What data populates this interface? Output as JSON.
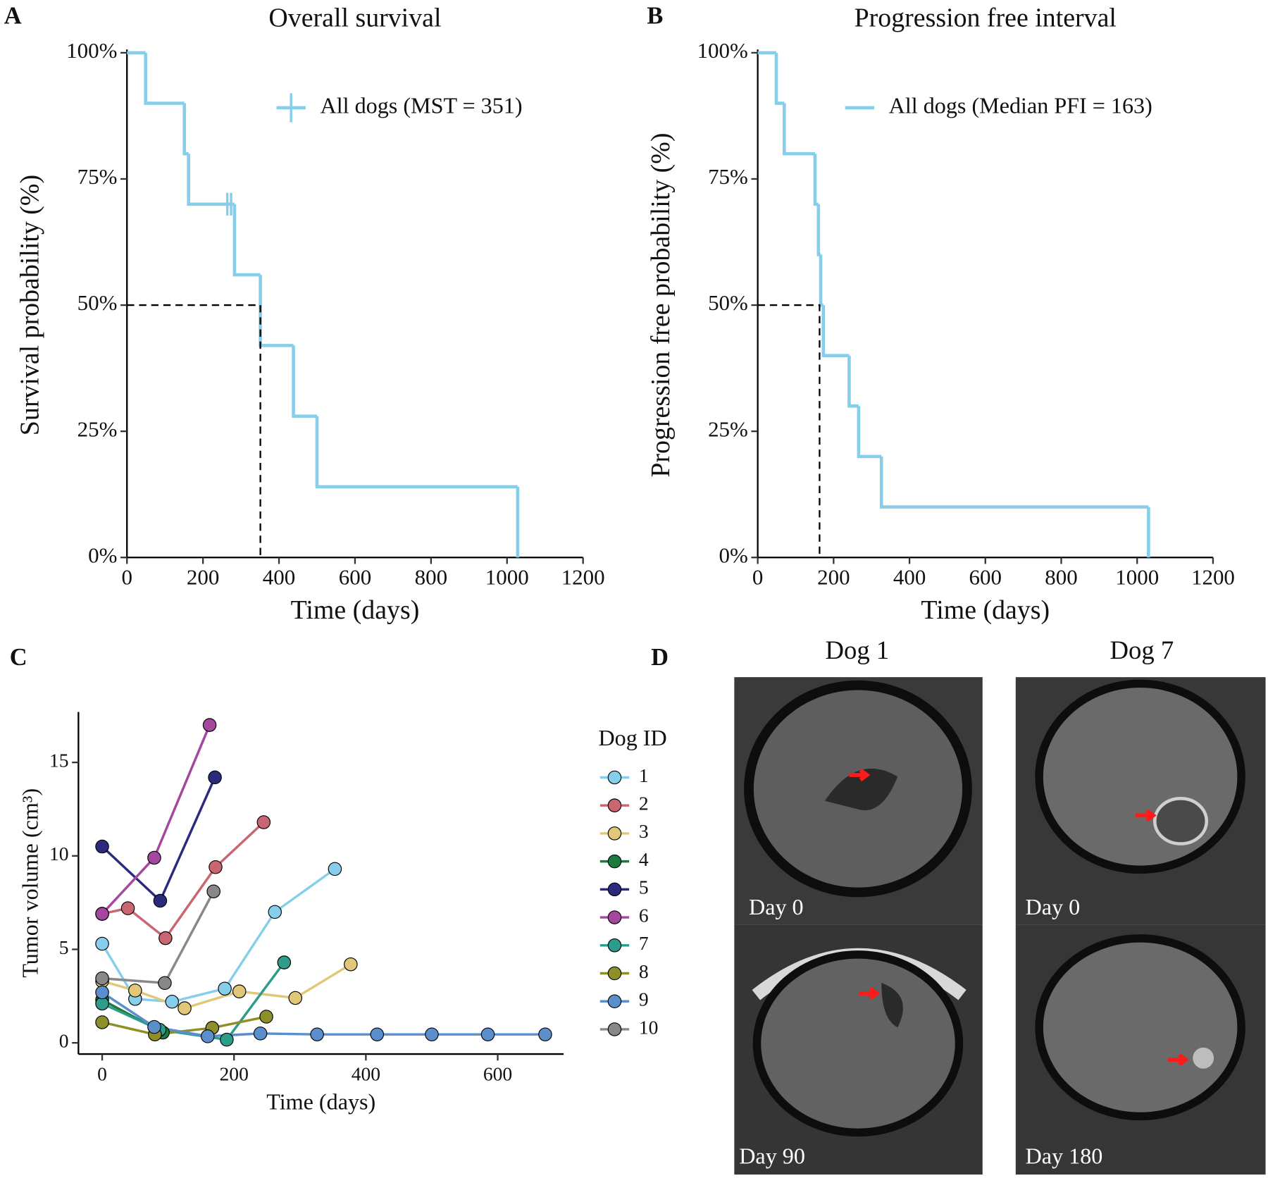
{
  "chart_data": [
    {
      "type": "step",
      "panel": "A",
      "title": "Overall survival",
      "xlabel": "Time (days)",
      "ylabel": "Survival probability (%)",
      "series": [
        {
          "name": "All dogs (MST = 351)",
          "color": "#87ceeb",
          "x": [
            0,
            49,
            151,
            162,
            283,
            351,
            438,
            500,
            1028
          ],
          "values": [
            100,
            90,
            80,
            70,
            56,
            42,
            28,
            14,
            0
          ],
          "censor_x": [
            264,
            274
          ],
          "censor_values": [
            70,
            70
          ]
        }
      ],
      "median": 351,
      "median_level": 50,
      "legend_position": "top-right",
      "xlim": [
        0,
        1200
      ],
      "xticks": [
        0,
        200,
        400,
        600,
        800,
        1000,
        1200
      ],
      "ylim": [
        0,
        100
      ],
      "yticks": [
        {
          "value": 0,
          "label": "0%"
        },
        {
          "value": 25,
          "label": "25%"
        },
        {
          "value": 50,
          "label": "50%"
        },
        {
          "value": 75,
          "label": "75%"
        },
        {
          "value": 100,
          "label": "100%"
        }
      ],
      "grid": false
    },
    {
      "type": "step",
      "panel": "B",
      "title": "Progression free interval",
      "xlabel": "Time (days)",
      "ylabel": "Progression free probability (%)",
      "series": [
        {
          "name": "All dogs (Median PFI = 163)",
          "color": "#87ceeb",
          "x": [
            0,
            49,
            70,
            151,
            160,
            166,
            173,
            241,
            266,
            326,
            1030
          ],
          "values": [
            100,
            90,
            80,
            70,
            60,
            50,
            40,
            30,
            20,
            10,
            0
          ]
        }
      ],
      "median": 163,
      "median_level": 50,
      "legend_position": "top-right",
      "xlim": [
        0,
        1200
      ],
      "xticks": [
        0,
        200,
        400,
        600,
        800,
        1000,
        1200
      ],
      "ylim": [
        0,
        100
      ],
      "yticks": [
        {
          "value": 0,
          "label": "0%"
        },
        {
          "value": 25,
          "label": "25%"
        },
        {
          "value": 50,
          "label": "50%"
        },
        {
          "value": 75,
          "label": "75%"
        },
        {
          "value": 100,
          "label": "100%"
        }
      ],
      "grid": false
    },
    {
      "type": "line",
      "panel": "C",
      "xlabel": "Time (days)",
      "ylabel": "Tumor volume (cm³)",
      "legend_title": "Dog ID",
      "legend_position": "right",
      "series": [
        {
          "name": "1",
          "color": "#87ceeb",
          "x": [
            0,
            50,
            106,
            186,
            262,
            353
          ],
          "values": [
            5.3,
            2.35,
            2.2,
            2.9,
            7.0,
            9.3
          ]
        },
        {
          "name": "2",
          "color": "#c96672",
          "x": [
            0,
            39,
            96,
            172,
            245
          ],
          "values": [
            6.9,
            7.2,
            5.6,
            9.4,
            11.8
          ]
        },
        {
          "name": "3",
          "color": "#e0c878",
          "x": [
            0,
            50,
            125,
            208,
            293,
            377
          ],
          "values": [
            3.3,
            2.8,
            1.85,
            2.75,
            2.4,
            4.2
          ]
        },
        {
          "name": "4",
          "color": "#1a7a40",
          "x": [
            0,
            92
          ],
          "values": [
            2.3,
            0.55
          ]
        },
        {
          "name": "5",
          "color": "#2b2a7c",
          "x": [
            0,
            88,
            171
          ],
          "values": [
            10.5,
            7.6,
            14.2
          ]
        },
        {
          "name": "6",
          "color": "#a4479e",
          "x": [
            0,
            79,
            163
          ],
          "values": [
            6.9,
            9.9,
            17.0
          ]
        },
        {
          "name": "7",
          "color": "#2e9c8a",
          "x": [
            0,
            87,
            189,
            276
          ],
          "values": [
            2.1,
            0.7,
            0.17,
            4.3
          ]
        },
        {
          "name": "8",
          "color": "#8f8f2a",
          "x": [
            0,
            80,
            167,
            249
          ],
          "values": [
            1.1,
            0.45,
            0.8,
            1.4
          ]
        },
        {
          "name": "9",
          "color": "#5b8fcc",
          "x": [
            0,
            79,
            160,
            240,
            326,
            417,
            500,
            585,
            672
          ],
          "values": [
            2.7,
            0.85,
            0.35,
            0.5,
            0.45,
            0.45,
            0.45,
            0.45,
            0.45
          ]
        },
        {
          "name": "10",
          "color": "#888888",
          "x": [
            0,
            95,
            169
          ],
          "values": [
            3.45,
            3.2,
            8.1
          ]
        }
      ],
      "xlim": [
        -36,
        700
      ],
      "xticks": [
        0,
        200,
        400,
        600
      ],
      "ylim": [
        -0.6,
        17.7
      ],
      "yticks": [
        0,
        5,
        10,
        15
      ],
      "grid": false
    }
  ],
  "image_panel": {
    "panel": "D",
    "columns": [
      "Dog 1",
      "Dog 7"
    ],
    "captions": [
      "Day 0",
      "Day 90",
      "Day 0",
      "Day 180"
    ]
  }
}
